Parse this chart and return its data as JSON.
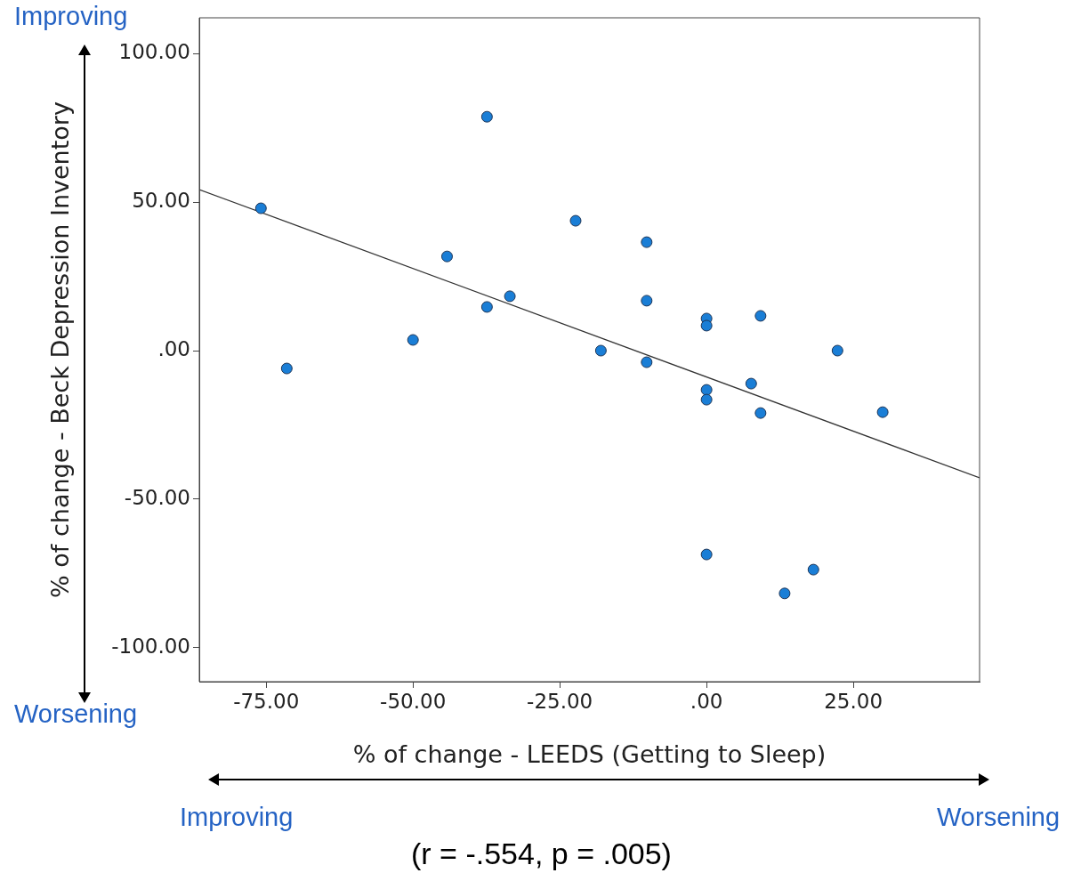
{
  "chart_data": {
    "type": "scatter",
    "xlabel": "% of change - LEEDS (Getting to Sleep)",
    "ylabel": "% of change - Beck Depression Inventory",
    "xlim": [
      -86.4,
      46.5
    ],
    "ylim": [
      -111.4,
      112
    ],
    "xticks": [
      {
        "value": -75,
        "label": "-75.00"
      },
      {
        "value": -50,
        "label": "-50.00"
      },
      {
        "value": -25,
        "label": "-25.00"
      },
      {
        "value": 0,
        "label": ".00"
      },
      {
        "value": 25,
        "label": "25.00"
      }
    ],
    "yticks": [
      {
        "value": -100,
        "label": "-100.00"
      },
      {
        "value": -50,
        "label": "-50.00"
      },
      {
        "value": 0,
        "label": ".00"
      },
      {
        "value": 50,
        "label": "50.00"
      },
      {
        "value": 100,
        "label": "100.00"
      }
    ],
    "grid": false,
    "legend": false,
    "marker": "circle",
    "series": [
      {
        "type": "scatter",
        "color": "#1a7ed6",
        "x": [
          -75.9,
          -71.5,
          -37.4,
          -22.3,
          -10.2,
          -44.2,
          -33.5,
          -37.4,
          -10.2,
          -50,
          -18,
          -10.2,
          0,
          0,
          9.2,
          22.3,
          0,
          0,
          7.6,
          9.2,
          30,
          0,
          18.2,
          13.3
        ],
        "values": [
          47.9,
          -6,
          78.7,
          43.7,
          36.5,
          31.7,
          18.3,
          14.7,
          16.8,
          3.6,
          0,
          -3.9,
          10.8,
          8.4,
          11.7,
          0,
          -13.2,
          -16.5,
          -11.1,
          -21,
          -20.7,
          -68.6,
          -73.7,
          -81.7
        ]
      },
      {
        "type": "line",
        "color": "#333333",
        "marker": "none",
        "x": [
          -86.4,
          46.5
        ],
        "values": [
          54.2,
          -42.8
        ]
      }
    ],
    "annotations": [
      "Improving",
      "Worsening",
      "Improving",
      "Worsening",
      "(r = -.554, p = .005)"
    ]
  }
}
